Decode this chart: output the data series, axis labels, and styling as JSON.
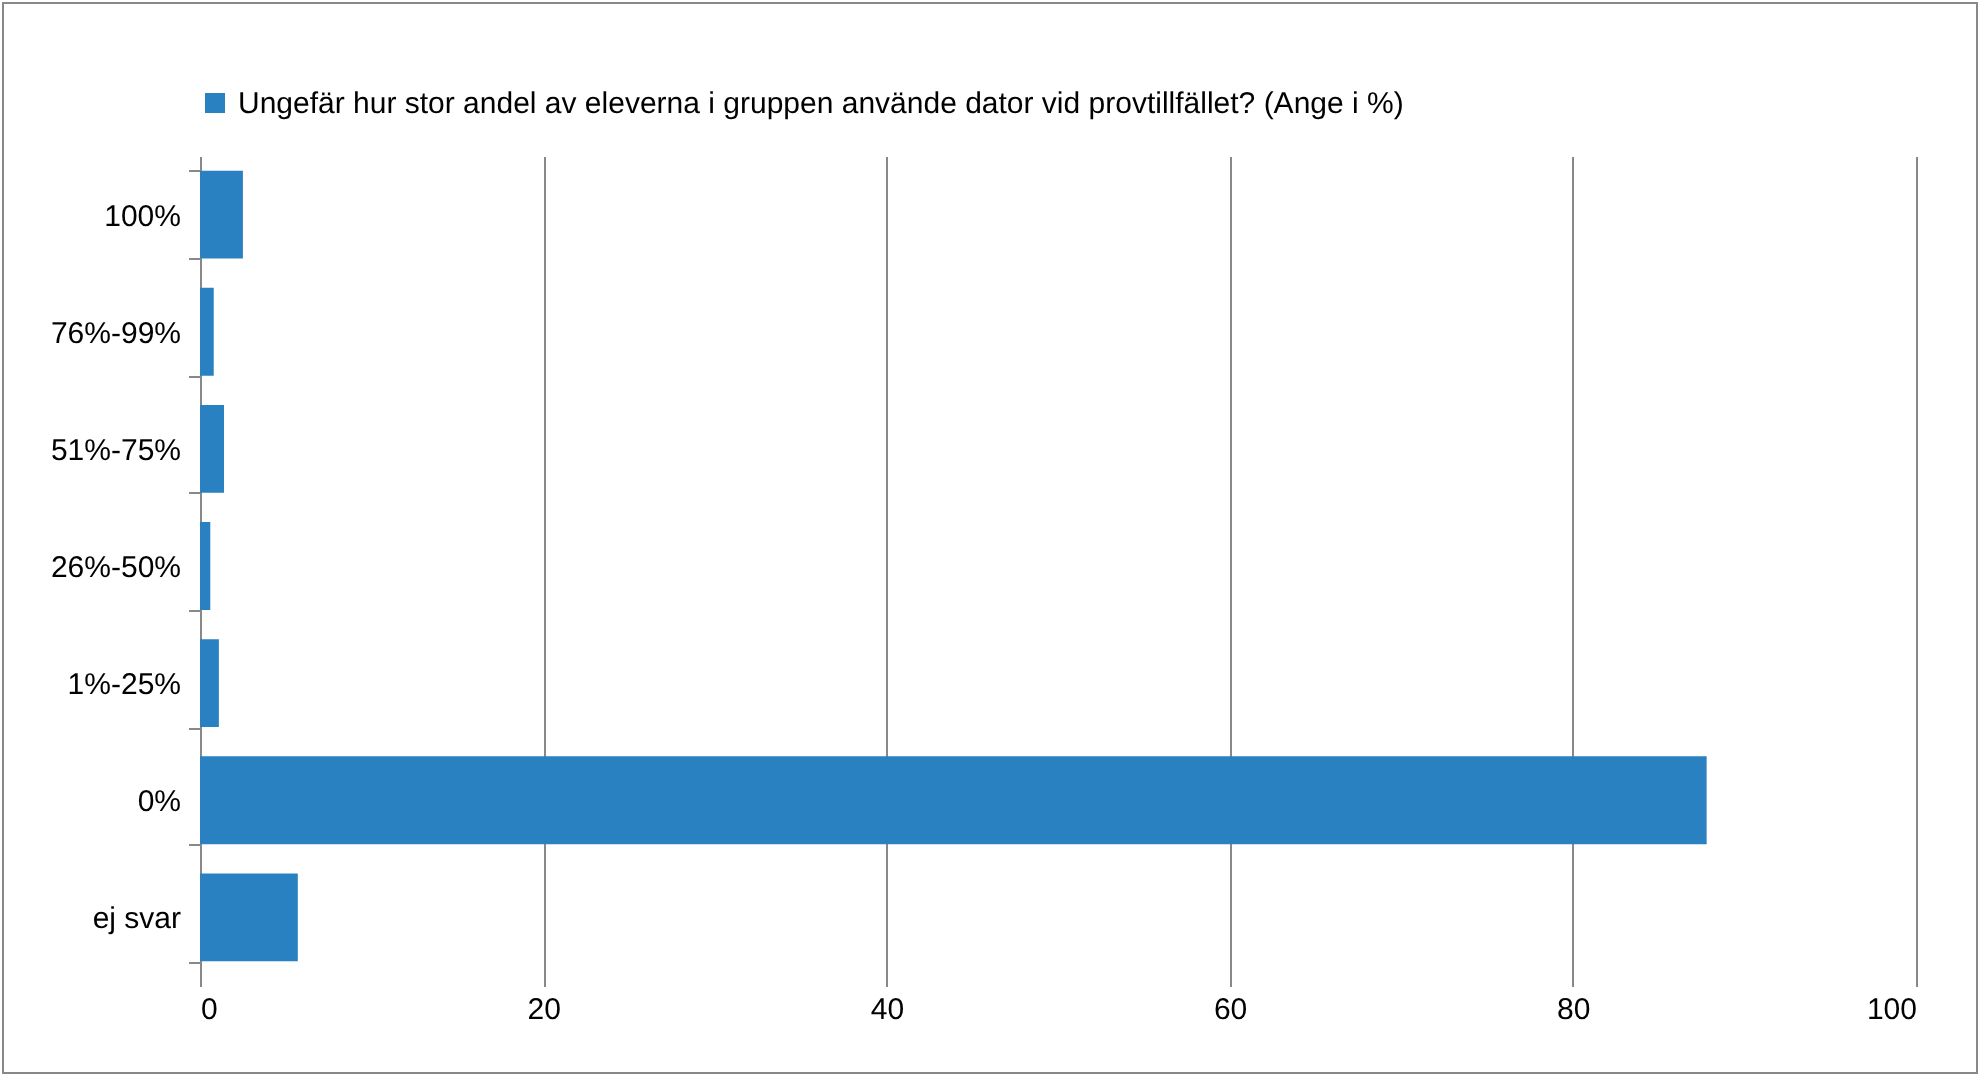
{
  "chart_data": {
    "type": "bar",
    "orientation": "horizontal",
    "categories": [
      "100%",
      "76%-99%",
      "51%-75%",
      "26%-50%",
      "1%-25%",
      "0%",
      "ej svar"
    ],
    "series": [
      {
        "name": "Ungefär hur stor andel av eleverna i gruppen använde dator vid provtillfället? (Ange i %)",
        "color": "#2a81c2",
        "values": [
          2.5,
          0.8,
          1.4,
          0.6,
          1.1,
          87.8,
          5.7
        ]
      }
    ],
    "xlim": [
      0,
      100
    ],
    "xticks": [
      0,
      20,
      40,
      60,
      80,
      100
    ],
    "grid": "x",
    "legend": "top"
  }
}
